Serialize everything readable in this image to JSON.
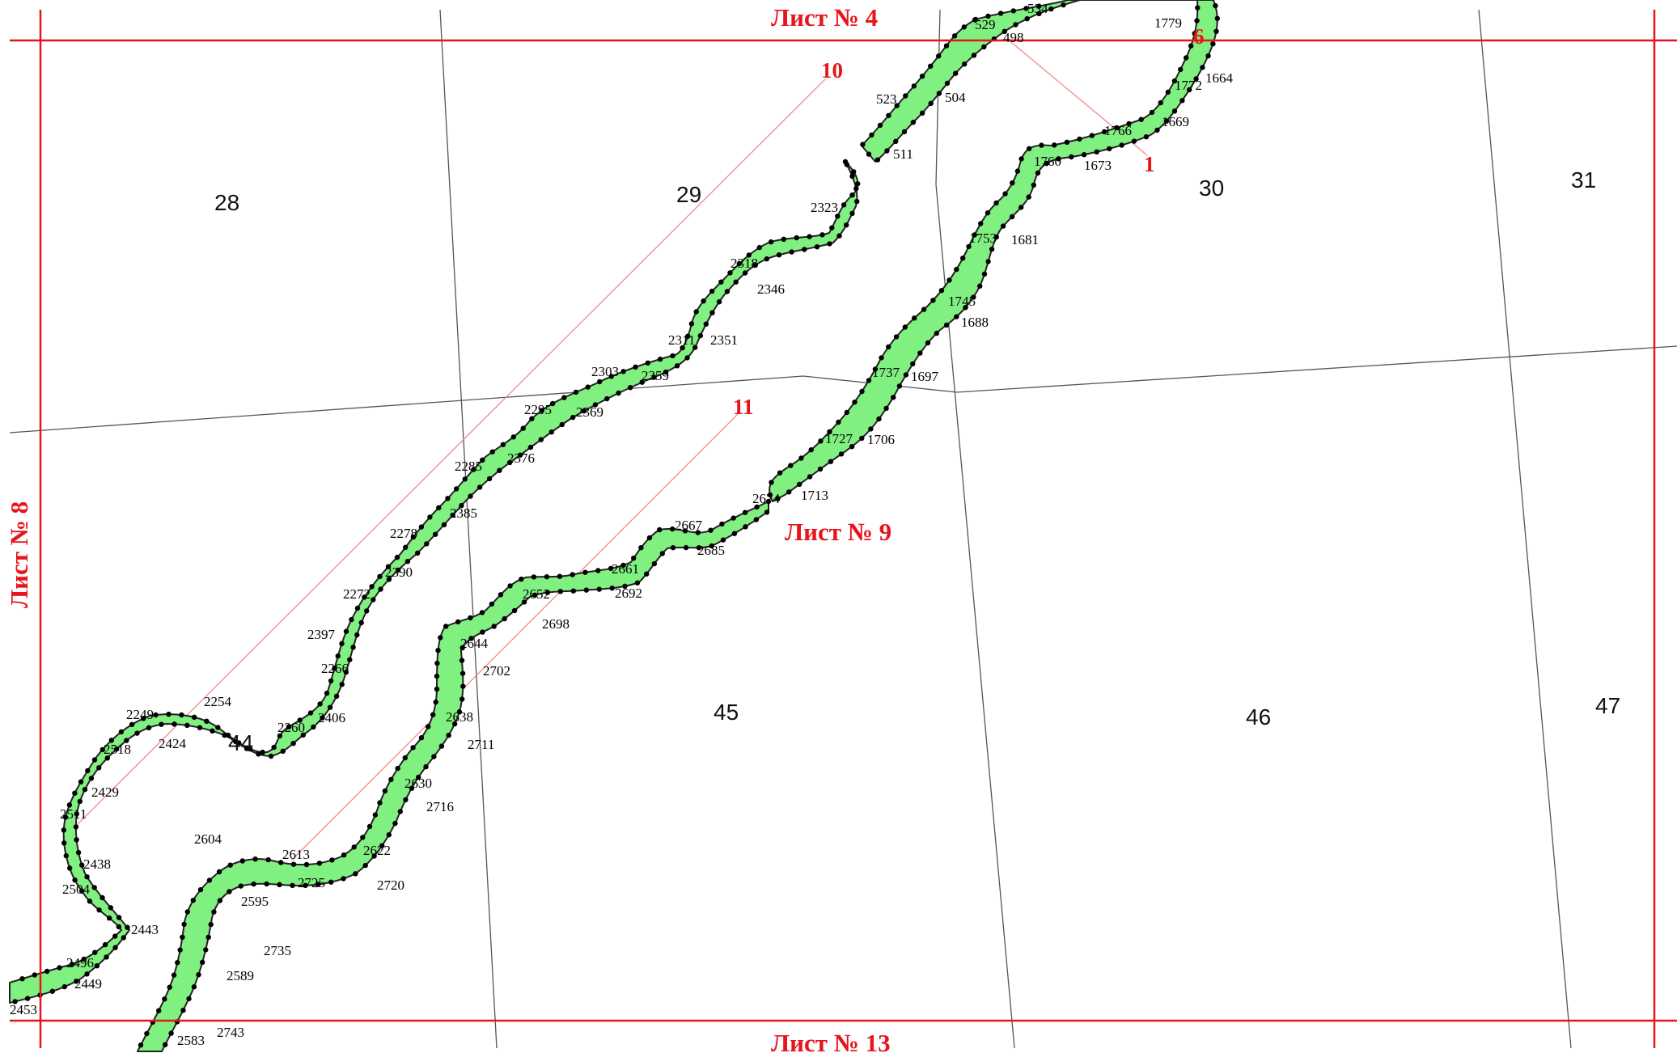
{
  "colors": {
    "frame": "#e8141c",
    "strip_fill": "#80f080",
    "strip_edge": "#222222",
    "boundary": "#555555",
    "ref_line": "#f08a8a",
    "vertex": "#000000"
  },
  "sheets": {
    "top": "Лист № 4",
    "left": "Лист № 8",
    "center": "Лист № 9",
    "bottom": "Лист № 13"
  },
  "line_labels": [
    "10",
    "11",
    "1",
    "6"
  ],
  "parcels": [
    "28",
    "29",
    "30",
    "31",
    "44",
    "45",
    "46",
    "47"
  ],
  "vertex_labels": [
    "534",
    "529",
    "498",
    "1779",
    "1664",
    "1772",
    "523",
    "504",
    "511",
    "1669",
    "1766",
    "1760",
    "1673",
    "2323",
    "2318",
    "2346",
    "1753",
    "1681",
    "1745",
    "1688",
    "2311",
    "2351",
    "2303",
    "2359",
    "1737",
    "1697",
    "2295",
    "2369",
    "1727",
    "1706",
    "2285",
    "2376",
    "1713",
    "2674",
    "2385",
    "2667",
    "2685",
    "2278",
    "2661",
    "2390",
    "2272",
    "2652",
    "2692",
    "2698",
    "2397",
    "2644",
    "2266",
    "2702",
    "2254",
    "2249",
    "2406",
    "2260",
    "2638",
    "2424",
    "2518",
    "2711",
    "2630",
    "2429",
    "2716",
    "2511",
    "2604",
    "2613",
    "2622",
    "2438",
    "2725",
    "2720",
    "2504",
    "2595",
    "2443",
    "2735",
    "2496",
    "2449",
    "2589",
    "2453",
    "2743",
    "2583"
  ]
}
